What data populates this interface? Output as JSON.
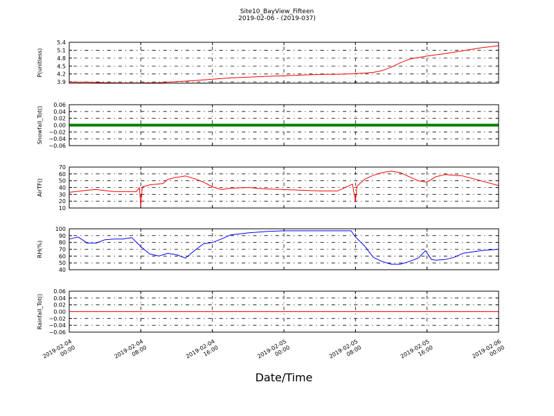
{
  "figure": {
    "title_line1": "Site10_BayView_Fifteen",
    "title_line2": "2019-02-06 - (2019-037)",
    "xlabel": "Date/Time"
  },
  "x_axis": {
    "range": [
      "2019-02-04 00:00",
      "2019-02-06 00:00"
    ],
    "ticks": [
      {
        "value": "2019-02-04 00:00",
        "line1": "2019-02-04",
        "line2": "00:00"
      },
      {
        "value": "2019-02-04 08:00",
        "line1": "2019-02-04",
        "line2": "08:00"
      },
      {
        "value": "2019-02-04 16:00",
        "line1": "2019-02-04",
        "line2": "16:00"
      },
      {
        "value": "2019-02-05 00:00",
        "line1": "2019-02-05",
        "line2": "00:00"
      },
      {
        "value": "2019-02-05 08:00",
        "line1": "2019-02-05",
        "line2": "08:00"
      },
      {
        "value": "2019-02-05 16:00",
        "line1": "2019-02-05",
        "line2": "16:00"
      },
      {
        "value": "2019-02-06 00:00",
        "line1": "2019-02-06",
        "line2": "00:00"
      }
    ]
  },
  "chart_data": [
    {
      "type": "line",
      "ylabel": "P(unitless)",
      "ylim": [
        3.85,
        5.4
      ],
      "yticks": [
        3.9,
        4.2,
        4.5,
        4.8,
        5.1,
        5.4
      ],
      "ytick_labels": [
        "3.9",
        "4.2",
        "4.5",
        "4.8",
        "5.1",
        "5.4"
      ],
      "grid": true,
      "series": [
        {
          "color": "#ff0000",
          "x": [
            "2019-02-04 00:00",
            "2019-02-04 02:00",
            "2019-02-04 04:00",
            "2019-02-04 06:00",
            "2019-02-04 08:00",
            "2019-02-04 10:00",
            "2019-02-04 12:00",
            "2019-02-04 14:00",
            "2019-02-04 16:00",
            "2019-02-04 18:00",
            "2019-02-04 20:00",
            "2019-02-04 22:00",
            "2019-02-05 00:00",
            "2019-02-05 02:00",
            "2019-02-05 04:00",
            "2019-02-05 06:00",
            "2019-02-05 08:00",
            "2019-02-05 10:00",
            "2019-02-05 11:00",
            "2019-02-05 12:00",
            "2019-02-05 13:00",
            "2019-02-05 14:00",
            "2019-02-05 16:00",
            "2019-02-05 18:00",
            "2019-02-05 20:00",
            "2019-02-05 22:00",
            "2019-02-06 00:00"
          ],
          "y": [
            3.89,
            3.89,
            3.87,
            3.86,
            3.86,
            3.87,
            3.91,
            3.95,
            4.0,
            4.05,
            4.08,
            4.11,
            4.13,
            4.16,
            4.18,
            4.19,
            4.21,
            4.26,
            4.33,
            4.46,
            4.62,
            4.76,
            4.88,
            4.97,
            5.08,
            5.19,
            5.27
          ]
        }
      ]
    },
    {
      "type": "line",
      "ylabel": "Snowfall_Tot()",
      "ylim": [
        -0.06,
        0.06
      ],
      "yticks": [
        -0.06,
        -0.04,
        -0.02,
        0.0,
        0.02,
        0.04,
        0.06
      ],
      "ytick_labels": [
        "−0.06",
        "−0.04",
        "−0.02",
        "0.00",
        "0.02",
        "0.04",
        "0.06"
      ],
      "grid": true,
      "series": [
        {
          "color": "#008000",
          "x": [
            "2019-02-04 00:00",
            "2019-02-06 00:00"
          ],
          "y": [
            0.0,
            0.0
          ]
        }
      ]
    },
    {
      "type": "line",
      "ylabel": "AirTF()",
      "ylim": [
        10,
        70
      ],
      "yticks": [
        10,
        20,
        30,
        40,
        50,
        60,
        70
      ],
      "ytick_labels": [
        "10",
        "20",
        "30",
        "40",
        "50",
        "60",
        "70"
      ],
      "grid": true,
      "series": [
        {
          "color": "#ff0000",
          "x": [
            "2019-02-04 00:00",
            "2019-02-04 02:00",
            "2019-02-04 03:00",
            "2019-02-04 05:00",
            "2019-02-04 06:30",
            "2019-02-04 07:30",
            "2019-02-04 07:50",
            "2019-02-04 08:00",
            "2019-02-04 08:10",
            "2019-02-04 09:00",
            "2019-02-04 10:30",
            "2019-02-04 11:00",
            "2019-02-04 12:00",
            "2019-02-04 13:00",
            "2019-02-04 14:00",
            "2019-02-04 15:00",
            "2019-02-04 16:00",
            "2019-02-04 17:00",
            "2019-02-04 18:00",
            "2019-02-04 20:00",
            "2019-02-04 22:00",
            "2019-02-05 00:00",
            "2019-02-05 02:00",
            "2019-02-05 04:00",
            "2019-02-05 06:00",
            "2019-02-05 07:40",
            "2019-02-05 08:00",
            "2019-02-05 08:10",
            "2019-02-05 09:00",
            "2019-02-05 10:00",
            "2019-02-05 11:00",
            "2019-02-05 12:00",
            "2019-02-05 13:00",
            "2019-02-05 14:00",
            "2019-02-05 15:00",
            "2019-02-05 16:00",
            "2019-02-05 17:00",
            "2019-02-05 18:00",
            "2019-02-05 20:00",
            "2019-02-05 22:00",
            "2019-02-06 00:00"
          ],
          "y": [
            33,
            36,
            37,
            34,
            34,
            34,
            40,
            13,
            41,
            44,
            46,
            52,
            55,
            57,
            53,
            48,
            41,
            37,
            39,
            40,
            38,
            37,
            36,
            35,
            35,
            45,
            19,
            42,
            52,
            58,
            62,
            64,
            62,
            56,
            50,
            48,
            56,
            59,
            57,
            50,
            43
          ]
        }
      ]
    },
    {
      "type": "line",
      "ylabel": "RH(%)",
      "ylim": [
        40,
        100
      ],
      "yticks": [
        40,
        50,
        60,
        70,
        80,
        90,
        100
      ],
      "ytick_labels": [
        "40",
        "50",
        "60",
        "70",
        "80",
        "90",
        "100"
      ],
      "grid": true,
      "series": [
        {
          "color": "#0000ff",
          "x": [
            "2019-02-04 00:00",
            "2019-02-04 01:00",
            "2019-02-04 02:00",
            "2019-02-04 03:00",
            "2019-02-04 04:00",
            "2019-02-04 05:00",
            "2019-02-04 06:00",
            "2019-02-04 07:00",
            "2019-02-04 08:00",
            "2019-02-04 09:00",
            "2019-02-04 10:00",
            "2019-02-04 11:00",
            "2019-02-04 12:00",
            "2019-02-04 13:00",
            "2019-02-04 14:00",
            "2019-02-04 15:00",
            "2019-02-04 16:00",
            "2019-02-04 17:00",
            "2019-02-04 18:00",
            "2019-02-04 20:00",
            "2019-02-04 22:00",
            "2019-02-05 00:00",
            "2019-02-05 02:00",
            "2019-02-05 04:00",
            "2019-02-05 06:00",
            "2019-02-05 07:30",
            "2019-02-05 08:00",
            "2019-02-05 09:00",
            "2019-02-05 10:00",
            "2019-02-05 11:00",
            "2019-02-05 12:00",
            "2019-02-05 13:00",
            "2019-02-05 14:00",
            "2019-02-05 15:00",
            "2019-02-05 15:50",
            "2019-02-05 16:30",
            "2019-02-05 17:00",
            "2019-02-05 18:00",
            "2019-02-05 19:00",
            "2019-02-05 20:00",
            "2019-02-05 22:00",
            "2019-02-06 00:00"
          ],
          "y": [
            85,
            88,
            79,
            79,
            84,
            85,
            85,
            87,
            74,
            63,
            60,
            64,
            62,
            57,
            68,
            78,
            80,
            85,
            91,
            94,
            96,
            97,
            97,
            97,
            97,
            97,
            88,
            75,
            58,
            52,
            48,
            48,
            52,
            57,
            68,
            55,
            54,
            55,
            58,
            64,
            68,
            70
          ]
        }
      ]
    },
    {
      "type": "line",
      "ylabel": "Rainfall_Tot()",
      "ylim": [
        -0.06,
        0.06
      ],
      "yticks": [
        -0.06,
        -0.04,
        -0.02,
        0.0,
        0.02,
        0.04,
        0.06
      ],
      "ytick_labels": [
        "−0.06",
        "−0.04",
        "−0.02",
        "0.00",
        "0.02",
        "0.04",
        "0.06"
      ],
      "grid": true,
      "series": [
        {
          "color": "#ff0000",
          "x": [
            "2019-02-04 00:00",
            "2019-02-06 00:00"
          ],
          "y": [
            0.0,
            0.0
          ]
        }
      ]
    }
  ]
}
